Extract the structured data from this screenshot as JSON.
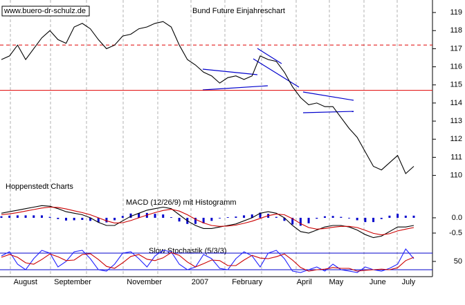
{
  "chart_data": [
    {
      "type": "line",
      "title": "Bund Future Einjahreschart",
      "source": "www.buero-dr-schulz.de",
      "credit": "Hoppenstedt Charts",
      "categories": [
        null,
        "August",
        null,
        null,
        null,
        null,
        "September",
        null,
        null,
        null,
        null,
        null,
        null,
        null,
        null,
        "November",
        null,
        null,
        null,
        null,
        null,
        null,
        null,
        "2007",
        null,
        null,
        null,
        null,
        "February",
        null,
        null,
        null,
        null,
        null,
        null,
        null,
        "April",
        null,
        null,
        null,
        "May",
        null,
        null,
        null,
        null,
        "June",
        null,
        null,
        null,
        "July",
        null,
        null
      ],
      "series": [
        {
          "color": "#000000",
          "values": [
            116.4,
            116.6,
            117.2,
            116.4,
            117.0,
            117.6,
            118.0,
            117.5,
            117.3,
            118.2,
            118.4,
            118.1,
            117.5,
            117.0,
            117.2,
            117.7,
            117.8,
            118.1,
            118.2,
            118.4,
            118.5,
            118.2,
            117.2,
            116.4,
            116.1,
            115.7,
            115.5,
            115.1,
            115.4,
            115.5,
            115.3,
            115.5,
            116.6,
            116.4,
            116.3,
            115.7,
            114.9,
            114.3,
            113.9,
            114.0,
            113.8,
            113.8,
            113.2,
            112.6,
            112.1,
            111.3,
            110.5,
            110.3,
            110.7,
            111.1,
            110.1,
            110.5
          ]
        }
      ],
      "reference_lines": [
        {
          "value": 117.2,
          "color": "#e00000",
          "dashed": true
        },
        {
          "value": 114.7,
          "color": "#e00000",
          "dashed": false
        }
      ],
      "ylim": [
        108.8,
        119.5
      ],
      "yticks": [
        110,
        111,
        112,
        113,
        114,
        115,
        116,
        117,
        118,
        119
      ]
    },
    {
      "type": "combo",
      "title": "MACD (12/26/9) mit Histogramm",
      "series": [
        {
          "kind": "bar",
          "color": "#0000cc",
          "values": [
            0.05,
            0.07,
            0.08,
            0.08,
            0.08,
            0.08,
            0.03,
            -0.04,
            -0.09,
            -0.08,
            -0.07,
            -0.1,
            -0.15,
            -0.15,
            -0.08,
            0.06,
            0.14,
            0.15,
            0.16,
            0.13,
            0.11,
            0.02,
            -0.12,
            -0.2,
            -0.2,
            -0.18,
            -0.1,
            -0.02,
            0.02,
            0.04,
            0.08,
            0.11,
            0.17,
            0.13,
            0.03,
            -0.1,
            -0.22,
            -0.26,
            -0.18,
            -0.03,
            0.05,
            0.06,
            0.03,
            -0.02,
            -0.08,
            -0.14,
            -0.14,
            -0.04,
            0.07,
            0.13,
            0.07,
            0.07
          ]
        },
        {
          "kind": "line",
          "color": "#000000",
          "values": [
            0.15,
            0.2,
            0.25,
            0.3,
            0.35,
            0.4,
            0.38,
            0.3,
            0.2,
            0.15,
            0.1,
            0.0,
            -0.15,
            -0.25,
            -0.25,
            -0.1,
            0.05,
            0.15,
            0.25,
            0.3,
            0.35,
            0.3,
            0.1,
            -0.1,
            -0.25,
            -0.35,
            -0.35,
            -0.3,
            -0.25,
            -0.2,
            -0.1,
            0.0,
            0.15,
            0.2,
            0.15,
            0.0,
            -0.25,
            -0.45,
            -0.5,
            -0.4,
            -0.3,
            -0.25,
            -0.25,
            -0.3,
            -0.4,
            -0.55,
            -0.65,
            -0.6,
            -0.45,
            -0.3,
            -0.3,
            -0.25
          ]
        },
        {
          "kind": "line",
          "color": "#cc0000",
          "values": [
            0.1,
            0.13,
            0.17,
            0.22,
            0.27,
            0.32,
            0.35,
            0.34,
            0.29,
            0.23,
            0.17,
            0.1,
            0.0,
            -0.1,
            -0.17,
            -0.16,
            -0.09,
            0.0,
            0.09,
            0.17,
            0.24,
            0.28,
            0.22,
            0.1,
            -0.05,
            -0.17,
            -0.25,
            -0.28,
            -0.27,
            -0.24,
            -0.18,
            -0.11,
            -0.02,
            0.07,
            0.12,
            0.1,
            -0.03,
            -0.19,
            -0.32,
            -0.37,
            -0.35,
            -0.31,
            -0.28,
            -0.28,
            -0.32,
            -0.41,
            -0.51,
            -0.56,
            -0.52,
            -0.43,
            -0.37,
            -0.32
          ]
        }
      ],
      "ylim": [
        -0.84,
        0.61
      ],
      "yticks": [
        {
          "value": 0,
          "label": "0.0"
        },
        -0.5
      ]
    },
    {
      "type": "line",
      "title": "Slow Stochastik (5/3/3)",
      "series": [
        {
          "color": "#2020ff",
          "values": [
            70,
            85,
            40,
            20,
            60,
            90,
            80,
            30,
            50,
            85,
            90,
            60,
            20,
            15,
            40,
            80,
            85,
            60,
            30,
            70,
            90,
            85,
            40,
            20,
            30,
            75,
            60,
            25,
            20,
            60,
            85,
            70,
            30,
            80,
            90,
            60,
            15,
            10,
            20,
            30,
            15,
            40,
            20,
            15,
            10,
            30,
            20,
            15,
            25,
            40,
            95,
            60
          ]
        },
        {
          "color": "#cc0000",
          "values": [
            65,
            75,
            65,
            45,
            40,
            57,
            77,
            67,
            53,
            55,
            75,
            78,
            57,
            32,
            25,
            45,
            68,
            75,
            58,
            53,
            63,
            82,
            72,
            48,
            30,
            42,
            55,
            53,
            35,
            35,
            55,
            72,
            62,
            60,
            67,
            77,
            55,
            28,
            15,
            20,
            22,
            28,
            25,
            25,
            15,
            18,
            20,
            22,
            20,
            27,
            53,
            65
          ]
        }
      ],
      "reference_lines": [
        {
          "value": 80,
          "color": "#0000cc",
          "dashed": false
        },
        {
          "value": 20,
          "color": "#0000cc",
          "dashed": false
        }
      ],
      "ylim": [
        0,
        100
      ],
      "yticks": [
        50
      ]
    }
  ]
}
